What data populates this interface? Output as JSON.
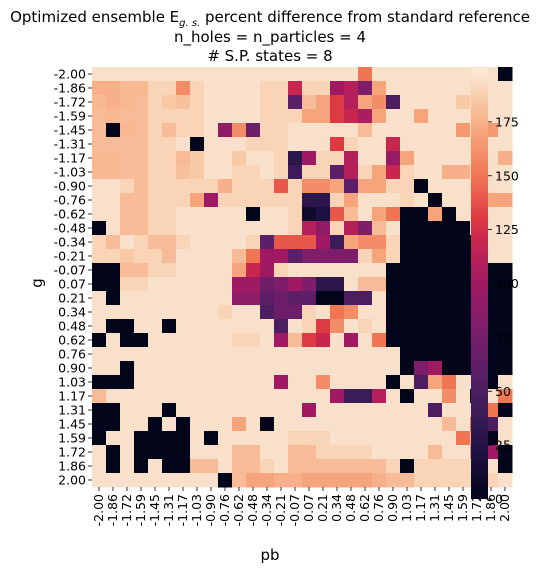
{
  "chart_data": {
    "type": "heatmap",
    "title": "Optimized ensemble E",
    "title_subscript": "g. s.",
    "title_suffix": " percent difference from standard reference",
    "subtitle_lines": [
      "n_holes = n_particles = 4",
      "# S.P. states = 8"
    ],
    "xlabel": "pb",
    "ylabel": "g",
    "x_tick_labels": [
      "-2.00",
      "-1.86",
      "-1.72",
      "-1.59",
      "-1.45",
      "-1.31",
      "-1.17",
      "-1.03",
      "-0.90",
      "-0.76",
      "-0.62",
      "-0.48",
      "-0.34",
      "-0.21",
      "-0.07",
      "0.07",
      "0.21",
      "0.34",
      "0.48",
      "0.62",
      "0.76",
      "0.90",
      "1.03",
      "1.17",
      "1.31",
      "1.45",
      "1.59",
      "1.72",
      "1.86",
      "2.00"
    ],
    "y_tick_labels": [
      "-2.00",
      "-1.86",
      "-1.72",
      "-1.59",
      "-1.45",
      "-1.31",
      "-1.17",
      "-1.03",
      "-0.90",
      "-0.76",
      "-0.62",
      "-0.48",
      "-0.34",
      "-0.21",
      "-0.07",
      "0.07",
      "0.21",
      "0.34",
      "0.48",
      "0.62",
      "0.76",
      "0.90",
      "1.03",
      "1.17",
      "1.31",
      "1.45",
      "1.59",
      "1.72",
      "1.86",
      "2.00"
    ],
    "colorbar_ticks": [
      0,
      25,
      50,
      75,
      100,
      125,
      150,
      175
    ],
    "color_range": [
      0,
      200
    ],
    "colormap": "rocket",
    "grid": false,
    "values": [
      [
        195,
        195,
        195,
        195,
        195,
        195,
        195,
        195,
        195,
        195,
        195,
        195,
        195,
        195,
        195,
        195,
        195,
        195,
        195,
        150,
        195,
        195,
        195,
        195,
        195,
        195,
        195,
        195,
        195,
        0
      ],
      [
        175,
        175,
        178,
        178,
        190,
        190,
        160,
        190,
        195,
        195,
        195,
        195,
        190,
        190,
        120,
        190,
        190,
        100,
        110,
        80,
        170,
        195,
        195,
        195,
        195,
        195,
        195,
        195,
        195,
        195
      ],
      [
        178,
        175,
        178,
        180,
        190,
        185,
        182,
        190,
        195,
        195,
        195,
        195,
        190,
        190,
        60,
        180,
        170,
        130,
        110,
        170,
        160,
        50,
        195,
        195,
        195,
        195,
        185,
        195,
        195,
        195
      ],
      [
        180,
        178,
        180,
        180,
        190,
        190,
        190,
        190,
        195,
        195,
        195,
        195,
        190,
        190,
        190,
        170,
        170,
        130,
        120,
        105,
        170,
        195,
        195,
        170,
        195,
        195,
        195,
        195,
        195,
        195
      ],
      [
        180,
        0,
        178,
        180,
        190,
        180,
        190,
        190,
        195,
        90,
        160,
        70,
        190,
        190,
        195,
        195,
        195,
        195,
        195,
        180,
        195,
        195,
        195,
        195,
        195,
        195,
        165,
        195,
        165,
        195
      ],
      [
        180,
        180,
        180,
        180,
        190,
        190,
        195,
        0,
        195,
        195,
        195,
        190,
        190,
        190,
        195,
        195,
        195,
        130,
        190,
        195,
        195,
        120,
        195,
        195,
        195,
        195,
        195,
        195,
        195,
        195
      ],
      [
        178,
        178,
        180,
        180,
        190,
        190,
        180,
        185,
        195,
        195,
        185,
        195,
        195,
        190,
        30,
        100,
        190,
        190,
        110,
        195,
        195,
        95,
        170,
        195,
        195,
        195,
        195,
        195,
        195,
        175
      ],
      [
        178,
        178,
        180,
        180,
        190,
        190,
        182,
        185,
        195,
        195,
        190,
        190,
        195,
        190,
        40,
        190,
        190,
        60,
        110,
        190,
        170,
        120,
        190,
        195,
        195,
        175,
        175,
        195,
        195,
        195
      ],
      [
        195,
        195,
        190,
        180,
        190,
        190,
        190,
        190,
        190,
        175,
        190,
        190,
        190,
        140,
        190,
        160,
        160,
        170,
        60,
        170,
        170,
        190,
        190,
        0,
        195,
        195,
        195,
        195,
        195,
        195
      ],
      [
        195,
        195,
        180,
        180,
        190,
        190,
        190,
        170,
        100,
        190,
        190,
        190,
        190,
        190,
        190,
        30,
        30,
        190,
        170,
        195,
        195,
        195,
        190,
        195,
        0,
        195,
        195,
        195,
        170,
        170
      ],
      [
        195,
        195,
        180,
        180,
        190,
        190,
        195,
        195,
        195,
        195,
        195,
        0,
        195,
        195,
        190,
        10,
        20,
        140,
        180,
        195,
        170,
        150,
        0,
        0,
        170,
        0,
        195,
        195,
        195,
        195
      ],
      [
        0,
        195,
        180,
        180,
        190,
        190,
        195,
        195,
        195,
        195,
        195,
        195,
        195,
        195,
        190,
        110,
        90,
        190,
        110,
        80,
        180,
        195,
        0,
        0,
        0,
        0,
        0,
        195,
        195,
        195
      ],
      [
        190,
        180,
        195,
        190,
        180,
        180,
        190,
        195,
        195,
        195,
        195,
        190,
        60,
        140,
        140,
        140,
        100,
        40,
        170,
        160,
        160,
        190,
        0,
        0,
        0,
        0,
        0,
        0,
        195,
        195
      ],
      [
        190,
        190,
        185,
        190,
        190,
        180,
        195,
        195,
        195,
        195,
        180,
        150,
        100,
        100,
        60,
        80,
        80,
        80,
        80,
        190,
        170,
        190,
        0,
        0,
        0,
        0,
        0,
        0,
        195,
        195
      ],
      [
        0,
        0,
        180,
        180,
        190,
        190,
        195,
        195,
        195,
        195,
        170,
        120,
        100,
        190,
        195,
        195,
        195,
        195,
        195,
        195,
        195,
        0,
        0,
        0,
        0,
        0,
        0,
        0,
        0,
        0
      ],
      [
        0,
        0,
        190,
        190,
        195,
        195,
        195,
        195,
        195,
        195,
        100,
        100,
        70,
        80,
        100,
        80,
        30,
        30,
        195,
        180,
        180,
        0,
        0,
        0,
        0,
        0,
        0,
        0,
        0,
        0
      ],
      [
        195,
        0,
        195,
        195,
        195,
        195,
        195,
        195,
        195,
        195,
        90,
        90,
        60,
        70,
        60,
        60,
        0,
        0,
        50,
        50,
        195,
        0,
        0,
        0,
        0,
        0,
        0,
        0,
        0,
        0
      ],
      [
        195,
        195,
        195,
        195,
        195,
        195,
        195,
        195,
        195,
        190,
        195,
        195,
        50,
        70,
        70,
        190,
        195,
        150,
        160,
        195,
        195,
        0,
        0,
        0,
        0,
        0,
        0,
        0,
        0,
        0
      ],
      [
        195,
        0,
        0,
        195,
        195,
        0,
        195,
        195,
        195,
        195,
        195,
        195,
        195,
        50,
        195,
        190,
        130,
        160,
        195,
        190,
        195,
        0,
        0,
        0,
        0,
        0,
        0,
        0,
        0,
        0
      ],
      [
        0,
        195,
        0,
        0,
        195,
        195,
        195,
        195,
        195,
        195,
        190,
        190,
        195,
        100,
        180,
        130,
        120,
        195,
        100,
        195,
        150,
        0,
        0,
        0,
        0,
        0,
        0,
        0,
        0,
        0
      ],
      [
        195,
        195,
        195,
        195,
        195,
        195,
        195,
        195,
        195,
        195,
        195,
        195,
        195,
        195,
        195,
        195,
        195,
        195,
        195,
        195,
        195,
        195,
        0,
        0,
        0,
        0,
        0,
        0,
        0,
        0
      ],
      [
        195,
        195,
        0,
        195,
        195,
        195,
        195,
        195,
        195,
        195,
        195,
        195,
        195,
        195,
        195,
        195,
        195,
        195,
        195,
        195,
        195,
        195,
        0,
        80,
        100,
        0,
        0,
        0,
        0,
        0
      ],
      [
        0,
        0,
        0,
        195,
        195,
        195,
        195,
        195,
        195,
        195,
        195,
        195,
        195,
        100,
        195,
        195,
        160,
        195,
        195,
        195,
        195,
        0,
        195,
        50,
        170,
        150,
        195,
        195,
        0,
        195
      ],
      [
        180,
        195,
        195,
        195,
        195,
        195,
        195,
        195,
        195,
        195,
        195,
        195,
        195,
        195,
        195,
        195,
        195,
        100,
        40,
        40,
        110,
        195,
        0,
        195,
        195,
        160,
        195,
        0,
        195,
        150
      ],
      [
        0,
        0,
        195,
        195,
        195,
        0,
        195,
        195,
        195,
        195,
        195,
        195,
        195,
        195,
        195,
        100,
        195,
        195,
        195,
        195,
        195,
        195,
        195,
        195,
        50,
        195,
        195,
        195,
        150,
        0
      ],
      [
        0,
        0,
        195,
        195,
        0,
        195,
        0,
        195,
        195,
        195,
        170,
        195,
        0,
        195,
        195,
        195,
        195,
        195,
        195,
        195,
        195,
        195,
        195,
        195,
        195,
        180,
        195,
        150,
        50,
        195
      ],
      [
        0,
        195,
        195,
        0,
        0,
        0,
        0,
        195,
        0,
        195,
        195,
        195,
        195,
        195,
        190,
        190,
        190,
        195,
        195,
        195,
        195,
        195,
        195,
        195,
        195,
        195,
        150,
        175,
        0,
        195
      ],
      [
        195,
        0,
        195,
        0,
        0,
        0,
        0,
        195,
        195,
        195,
        180,
        180,
        195,
        195,
        180,
        180,
        190,
        190,
        190,
        190,
        195,
        195,
        195,
        195,
        180,
        195,
        195,
        160,
        100,
        0
      ],
      [
        195,
        0,
        195,
        0,
        195,
        0,
        0,
        180,
        180,
        195,
        180,
        180,
        190,
        195,
        180,
        180,
        180,
        180,
        180,
        180,
        180,
        190,
        0,
        190,
        190,
        190,
        190,
        195,
        195,
        0
      ],
      [
        195,
        195,
        195,
        195,
        195,
        195,
        195,
        195,
        195,
        0,
        180,
        170,
        170,
        175,
        175,
        170,
        170,
        170,
        170,
        170,
        175,
        180,
        180,
        190,
        190,
        190,
        190,
        190,
        190,
        195
      ]
    ]
  }
}
